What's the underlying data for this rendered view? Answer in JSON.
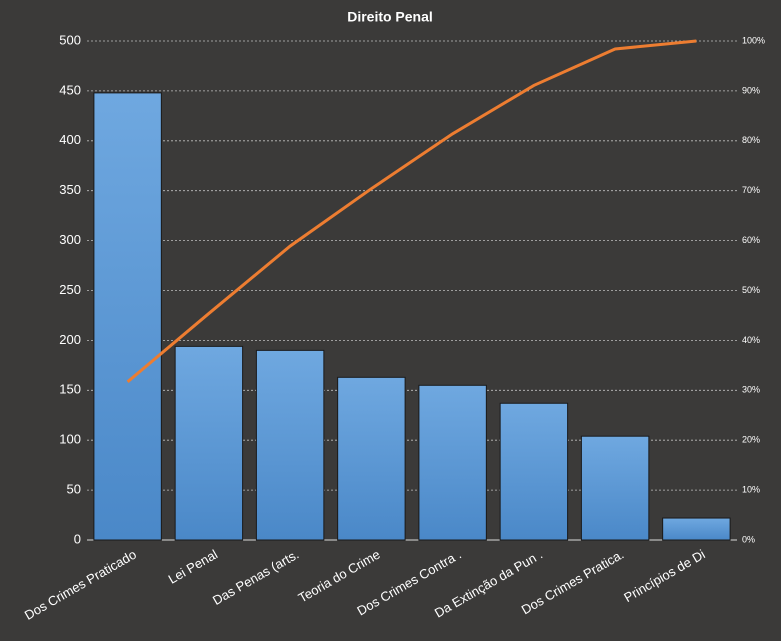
{
  "chart_data": {
    "type": "bar",
    "title": "Direito  Penal",
    "categories": [
      "Dos Crimes Praticado",
      "Lei Penal",
      "Das Penas (arts.",
      "Teoria do Crime",
      "Dos Crimes Contra .",
      "Da Extinção da Pun .",
      "Dos Crimes Pratica.",
      "Princípios de Di"
    ],
    "series": [
      {
        "type": "bar",
        "color": "#5b9bd5",
        "values": [
          448,
          194,
          190,
          163,
          155,
          137,
          104,
          22
        ]
      },
      {
        "type": "line",
        "axis": "y2",
        "color": "#ed7d31",
        "values": [
          31.7,
          45.4,
          58.9,
          70.4,
          81.4,
          91.1,
          98.4,
          100
        ]
      }
    ],
    "ylim": [
      0,
      500
    ],
    "yticks": [
      0,
      50,
      100,
      150,
      200,
      250,
      300,
      350,
      400,
      450,
      500
    ],
    "y2lim": [
      0,
      100
    ],
    "y2ticks": [
      {
        "value": 0,
        "label": "0%"
      },
      {
        "value": 10,
        "label": "10%"
      },
      {
        "value": 20,
        "label": "20%"
      },
      {
        "value": 30,
        "label": "30%"
      },
      {
        "value": 40,
        "label": "40%"
      },
      {
        "value": 50,
        "label": "50%"
      },
      {
        "value": 60,
        "label": "60%"
      },
      {
        "value": 70,
        "label": "70%"
      },
      {
        "value": 80,
        "label": "80%"
      },
      {
        "value": 90,
        "label": "90%"
      },
      {
        "value": 100,
        "label": "100%"
      }
    ],
    "grid": true
  }
}
